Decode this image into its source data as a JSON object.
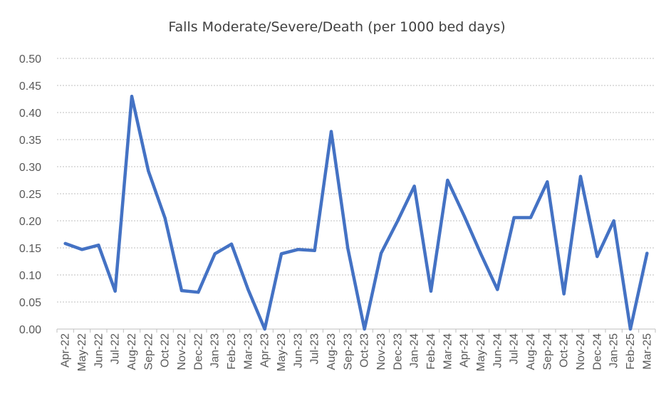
{
  "chart_data": {
    "type": "line",
    "title": "Falls Moderate/Severe/Death  (per 1000 bed days)",
    "xlabel": "",
    "ylabel": "",
    "ylim": [
      0,
      0.5
    ],
    "yticks": [
      "0.00",
      "0.05",
      "0.10",
      "0.15",
      "0.20",
      "0.25",
      "0.30",
      "0.35",
      "0.40",
      "0.45",
      "0.50"
    ],
    "grid": true,
    "legend": "none",
    "line_color": "#4472c4",
    "categories": [
      "Apr-22",
      "May-22",
      "Jun-22",
      "Jul-22",
      "Aug-22",
      "Sep-22",
      "Oct-22",
      "Nov-22",
      "Dec-22",
      "Jan-23",
      "Feb-23",
      "Mar-23",
      "Apr-23",
      "May-23",
      "Jun-23",
      "Jul-23",
      "Aug-23",
      "Sep-23",
      "Oct-23",
      "Nov-23",
      "Dec-23",
      "Jan-24",
      "Feb-24",
      "Mar-24",
      "Apr-24",
      "May-24",
      "Jun-24",
      "Jul-24",
      "Aug-24",
      "Sep-24",
      "Oct-24",
      "Nov-24",
      "Dec-24",
      "Jan-25",
      "Feb-25",
      "Mar-25"
    ],
    "series": [
      {
        "name": "",
        "values": [
          0.158,
          0.147,
          0.155,
          0.07,
          0.43,
          0.292,
          0.205,
          0.071,
          0.068,
          0.139,
          0.157,
          0.073,
          0.0,
          0.139,
          0.147,
          0.145,
          0.365,
          0.149,
          0.0,
          0.14,
          0.2,
          0.264,
          0.07,
          0.275,
          0.209,
          0.139,
          0.073,
          0.206,
          0.206,
          0.272,
          0.065,
          0.282,
          0.134,
          0.2,
          0.0,
          0.14
        ]
      }
    ]
  }
}
